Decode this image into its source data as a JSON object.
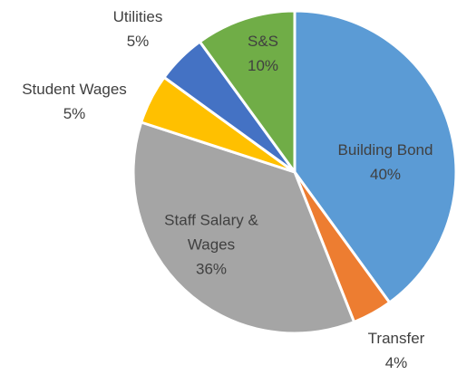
{
  "chart_data": {
    "type": "pie",
    "categories": [
      "Building Bond",
      "Transfer",
      "Staff Salary & Wages",
      "Student Wages",
      "Utilities",
      "S&S"
    ],
    "values": [
      40,
      4,
      36,
      5,
      5,
      10
    ],
    "value_labels": [
      "40%",
      "4%",
      "36%",
      "5%",
      "5%",
      "10%"
    ],
    "colors": [
      "#5b9bd5",
      "#ed7d31",
      "#a5a5a5",
      "#ffc000",
      "#4472c4",
      "#70ad47"
    ]
  }
}
